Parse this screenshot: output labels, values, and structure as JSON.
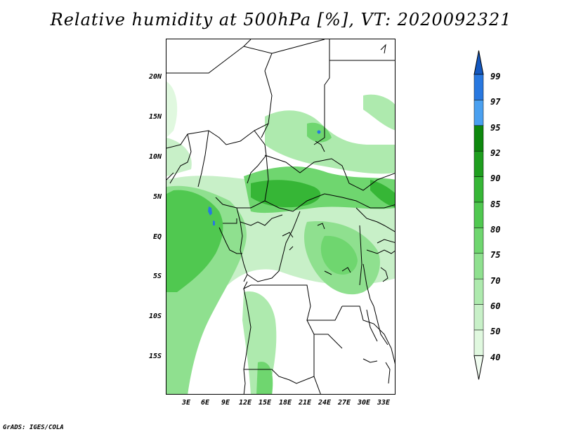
{
  "title": "Relative humidity at 500hPa [%], VT: 2020092321",
  "credit": "GrADS: IGES/COLA",
  "lat_labels": [
    "20N",
    "15N",
    "10N",
    "5N",
    "EQ",
    "5S",
    "10S",
    "15S"
  ],
  "lon_labels": [
    "3E",
    "6E",
    "9E",
    "12E",
    "15E",
    "18E",
    "21E",
    "24E",
    "27E",
    "30E",
    "33E"
  ],
  "colorbar": {
    "levels": [
      "40",
      "50",
      "60",
      "70",
      "75",
      "80",
      "85",
      "90",
      "92",
      "95",
      "97",
      "99"
    ],
    "colors": [
      "#f0fcf0",
      "#e0f8df",
      "#c8f0c8",
      "#aeeaae",
      "#8fe08f",
      "#6fd66f",
      "#50c850",
      "#36b636",
      "#1e9e1e",
      "#0e880e",
      "#4aa0f0",
      "#2878e0",
      "#1458c0"
    ]
  },
  "map": {
    "region": "Central Africa",
    "lon_range": [
      "0E",
      "35E"
    ],
    "lat_range": [
      "19S",
      "25N"
    ]
  }
}
